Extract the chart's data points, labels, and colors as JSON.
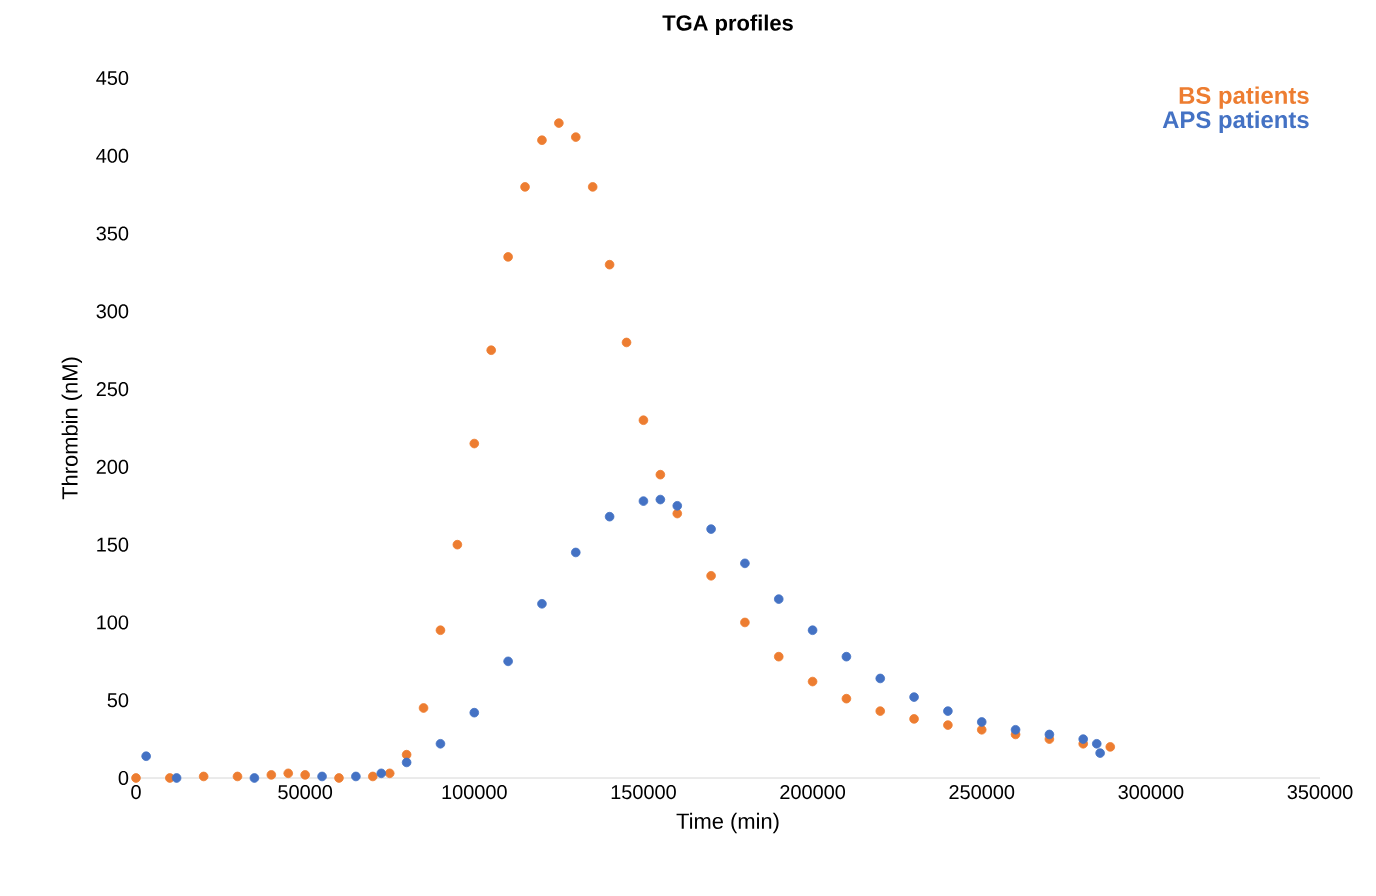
{
  "chart_data": {
    "type": "scatter",
    "title": "TGA profiles",
    "xlabel": "Time (min)",
    "ylabel": "Thrombin (nM)",
    "xlim": [
      0,
      350000
    ],
    "ylim": [
      0,
      450
    ],
    "xticks": [
      0,
      50000,
      100000,
      150000,
      200000,
      250000,
      300000,
      350000
    ],
    "yticks": [
      0,
      50,
      100,
      150,
      200,
      250,
      300,
      350,
      400,
      450
    ],
    "grid": false,
    "legend": "top right",
    "marker": "circle",
    "series": [
      {
        "name": "BS patients",
        "color": "#ed7d31",
        "x": [
          0,
          10000,
          20000,
          30000,
          40000,
          45000,
          50000,
          60000,
          70000,
          75000,
          80000,
          85000,
          90000,
          95000,
          100000,
          105000,
          110000,
          115000,
          120000,
          125000,
          130000,
          135000,
          140000,
          145000,
          150000,
          155000,
          160000,
          170000,
          180000,
          190000,
          200000,
          210000,
          220000,
          230000,
          240000,
          250000,
          260000,
          270000,
          280000,
          288000
        ],
        "values": [
          0,
          0,
          1,
          1,
          2,
          3,
          2,
          0,
          1,
          3,
          15,
          45,
          95,
          150,
          215,
          275,
          335,
          380,
          410,
          421,
          412,
          380,
          330,
          280,
          230,
          195,
          170,
          130,
          100,
          78,
          62,
          51,
          43,
          38,
          34,
          31,
          28,
          25,
          22,
          20
        ]
      },
      {
        "name": "APS patients",
        "color": "#4472c4",
        "x": [
          3000,
          12000,
          35000,
          55000,
          65000,
          72500,
          80000,
          90000,
          100000,
          110000,
          120000,
          130000,
          140000,
          150000,
          155000,
          160000,
          170000,
          180000,
          190000,
          200000,
          210000,
          220000,
          230000,
          240000,
          250000,
          260000,
          270000,
          280000,
          284000,
          285000
        ],
        "values": [
          14,
          0,
          0,
          1,
          1,
          3,
          10,
          22,
          42,
          75,
          112,
          145,
          168,
          178,
          179,
          175,
          160,
          138,
          115,
          95,
          78,
          64,
          52,
          43,
          36,
          31,
          28,
          25,
          22,
          16
        ]
      }
    ]
  }
}
